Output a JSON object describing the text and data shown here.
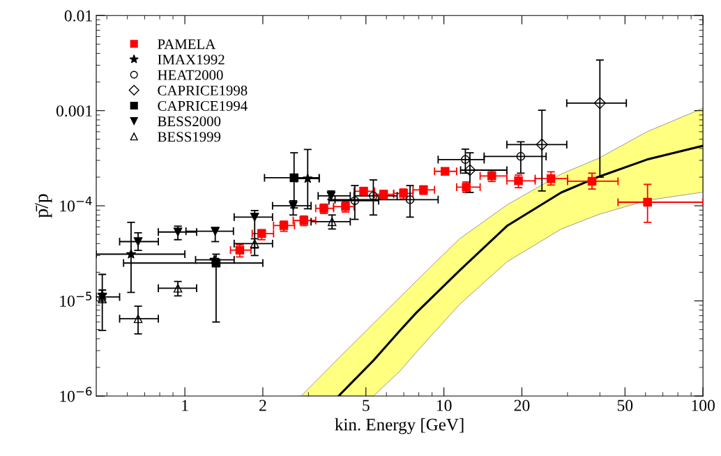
{
  "chart_data": {
    "type": "scatter",
    "xlabel": "kin. Energy [GeV]",
    "ylabel": "p̄/p",
    "log": "xy",
    "grid": false,
    "legend": "top left",
    "xlim": [
      0.455,
      100
    ],
    "xticks": [
      1,
      2,
      5,
      10,
      20,
      50,
      100
    ],
    "ylim": [
      1e-06,
      0.01
    ],
    "yticks": [
      {
        "value": 1e-06,
        "label": "10$^{−6}$"
      },
      {
        "value": 1e-05,
        "label": "10$^{−5}$"
      },
      {
        "value": 0.0001,
        "label": "10$^{−4}$"
      },
      0.001,
      0.01
    ],
    "series": [
      {
        "type": "line",
        "color": "#000000",
        "line_style": "solid",
        "x": [
          2.81,
          3.92,
          5.35,
          6.78,
          7.82,
          11.5,
          17.6,
          28.4,
          39.6,
          60.8,
          100
        ],
        "values": [
          null,
          1e-06,
          2.37e-06,
          4.9e-06,
          7.5e-06,
          2.09e-05,
          6.2e-05,
          0.000138,
          0.000202,
          0.000306,
          0.000427
        ],
        "lower": [
          1e-06,
          1e-06,
          1e-06,
          1.84e-06,
          2.88e-06,
          9.2e-06,
          2.6e-05,
          5.7e-05,
          8.1e-05,
          0.000114,
          0.000139
        ],
        "upper": [
          1e-06,
          2.5e-06,
          5.8e-06,
          1.1e-05,
          1.62e-05,
          4.5e-05,
          0.000103,
          0.000216,
          0.000316,
          0.0006,
          0.00106
        ]
      },
      {
        "name": "PAMELA",
        "color": "#ff0000",
        "marker": "square",
        "x": [
          1.63,
          1.98,
          2.41,
          2.88,
          3.44,
          4.17,
          4.9,
          5.85,
          6.98,
          8.34,
          10.1,
          12.2,
          15.3,
          19.4,
          25.9,
          37.3,
          61.1
        ],
        "values": [
          3.42e-05,
          5.1e-05,
          6.2e-05,
          7e-05,
          9.4e-05,
          9.8e-05,
          0.000142,
          0.000132,
          0.000135,
          0.000147,
          0.00023,
          0.000157,
          0.000206,
          0.000183,
          0.000193,
          0.000181,
          0.000109
        ],
        "xerrors": [
          [
            1.5,
            1.8
          ],
          [
            1.82,
            2.2
          ],
          [
            2.2,
            2.65
          ],
          [
            2.62,
            3.2
          ],
          [
            3.2,
            3.75
          ],
          [
            3.75,
            4.5
          ],
          [
            4.5,
            5.4
          ],
          [
            5.4,
            6.4
          ],
          [
            6.4,
            7.6
          ],
          [
            7.6,
            9.2
          ],
          [
            9.2,
            11.2
          ],
          [
            11.2,
            13.8
          ],
          [
            13.8,
            17.5
          ],
          [
            17.5,
            22.5
          ],
          [
            22.5,
            30
          ],
          [
            30,
            47
          ],
          [
            47,
            100
          ]
        ],
        "errors": [
          [
            2.9e-05,
            3.9e-05
          ],
          [
            4.4e-05,
            5.6e-05
          ],
          [
            5.4e-05,
            6.9e-05
          ],
          [
            6.2e-05,
            7.8e-05
          ],
          [
            8.3e-05,
            0.000104
          ],
          [
            8.6e-05,
            0.00011
          ],
          [
            0.000127,
            0.000156
          ],
          [
            0.000119,
            0.000145
          ],
          [
            0.000118,
            0.00015
          ],
          [
            0.000132,
            0.000162
          ],
          [
            0.000212,
            0.00025
          ],
          [
            0.000138,
            0.000178
          ],
          [
            0.00018,
            0.000235
          ],
          [
            0.000155,
            0.00021
          ],
          [
            0.000165,
            0.000228
          ],
          [
            0.00015,
            0.00022
          ],
          [
            6.7e-05,
            0.000168
          ]
        ]
      },
      {
        "name": "IMAX1992",
        "color": "#000000",
        "marker": "star",
        "x": [
          0.48,
          0.62,
          1.3,
          2.98
        ],
        "values": [
          1.15e-05,
          3.1e-05,
          2.7e-05,
          0.000193
        ],
        "xerrors": [
          null,
          [
            0.455,
            1.0
          ],
          [
            1.1,
            1.55
          ],
          [
            2.7,
            3.3
          ]
        ],
        "errors": [
          [
            4.9e-06,
            1.9e-05
          ],
          [
            1.23e-05,
            6.7e-05
          ],
          null,
          [
            9.3e-05,
            0.00039
          ]
        ]
      },
      {
        "name": "HEAT2000",
        "color": "#000000",
        "marker": "circle-open",
        "x": [
          4.53,
          5.34,
          7.4,
          12.1,
          19.8
        ],
        "values": [
          0.000113,
          0.000127,
          0.000116,
          0.000306,
          0.00033
        ],
        "xerrors": [
          [
            3.6,
            5.6
          ],
          [
            4.5,
            6.6
          ],
          [
            3.8,
            9.5
          ],
          [
            9.5,
            14.3
          ],
          [
            14.3,
            24.8
          ]
        ],
        "errors": [
          [
            7.2e-05,
            0.000163
          ],
          [
            8e-05,
            0.000187
          ],
          [
            7.6e-05,
            0.000163
          ],
          [
            0.00022,
            0.000394
          ],
          [
            0.00022,
            0.00047
          ]
        ]
      },
      {
        "name": "CAPRICE1998",
        "color": "#000000",
        "marker": "diamond-open",
        "x": [
          12.6,
          23.9,
          40
        ],
        "values": [
          0.000237,
          0.00044,
          0.0012
        ],
        "xerrors": [
          [
            11.6,
            17.5
          ],
          [
            17.5,
            29.8
          ],
          [
            29.8,
            50.6
          ]
        ],
        "errors": [
          [
            0.000138,
            0.00036
          ],
          [
            0.000143,
            0.00101
          ],
          [
            0.0002,
            0.0034
          ]
        ]
      },
      {
        "name": "CAPRICE1994",
        "color": "#000000",
        "marker": "square",
        "x": [
          1.32,
          2.64
        ],
        "values": [
          2.5e-05,
          0.000197
        ],
        "xerrors": [
          [
            0.58,
            2.0
          ],
          [
            2.03,
            3.3
          ]
        ],
        "errors": [
          [
            6e-06,
            3.1e-05
          ],
          [
            9.5e-05,
            0.00036
          ]
        ]
      },
      {
        "name": "BESS2000",
        "color": "#000000",
        "marker": "triangle-down",
        "x": [
          0.48,
          0.66,
          0.94,
          1.31,
          1.86,
          2.62,
          3.67
        ],
        "values": [
          1.1e-05,
          4.2e-05,
          5.3e-05,
          5.4e-05,
          7.6e-05,
          0.0001,
          0.000127
        ],
        "xerrors": [
          [
            0.455,
            0.56
          ],
          [
            0.56,
            0.79
          ],
          [
            0.79,
            1.11
          ],
          [
            1.01,
            1.54
          ],
          [
            1.55,
            2.18
          ],
          [
            2.18,
            3.07
          ],
          [
            3.27,
            4.35
          ]
        ],
        "errors": [
          [
            1e-05,
            1.3e-05
          ],
          [
            3.4e-05,
            5.2e-05
          ],
          [
            4.4e-05,
            6.1e-05
          ],
          [
            4.2e-05,
            5.9e-05
          ],
          [
            3e-05,
            8.9e-05
          ],
          [
            8e-05,
            0.000113
          ],
          [
            0.000116,
            0.000143
          ]
        ]
      },
      {
        "name": "BESS1999",
        "color": "#000000",
        "marker": "triangle-open",
        "x": [
          0.48,
          0.66,
          0.94,
          1.86,
          3.7
        ],
        "values": [
          1.05e-05,
          6.5e-06,
          1.36e-05,
          4e-05,
          6.8e-05
        ],
        "xerrors": [
          null,
          [
            0.56,
            0.79
          ],
          [
            0.79,
            1.11
          ],
          [
            1.55,
            2.18
          ],
          [
            3.07,
            4.35
          ]
        ],
        "errors": [
          null,
          [
            4.5e-06,
            8.8e-06
          ],
          [
            1.13e-05,
            1.6e-05
          ],
          [
            3.6e-05,
            4.5e-05
          ],
          [
            5.7e-05,
            8e-05
          ]
        ]
      }
    ]
  }
}
